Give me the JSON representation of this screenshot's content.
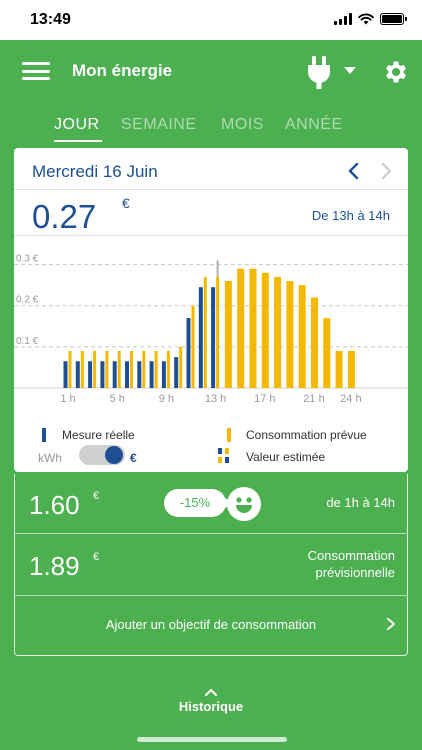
{
  "status": {
    "time": "13:49"
  },
  "header": {
    "title": "Mon énergie"
  },
  "tabs": [
    {
      "label": "JOUR",
      "active": true
    },
    {
      "label": "SEMAINE",
      "active": false
    },
    {
      "label": "MOIS",
      "active": false
    },
    {
      "label": "ANNÉE",
      "active": false
    }
  ],
  "card": {
    "date": "Mercredi 16 Juin",
    "value": "0.27",
    "unit": "€",
    "range": "De 13h à 14h"
  },
  "chart_data": {
    "type": "bar",
    "y_ticks": [
      "0.3 €",
      "0.2 €",
      "0.1 €"
    ],
    "ylim": [
      0,
      0.35
    ],
    "x_ticks": [
      "1 h",
      "5 h",
      "9 h",
      "13 h",
      "17 h",
      "21 h",
      "24 h"
    ],
    "hours": [
      1,
      2,
      3,
      4,
      5,
      6,
      7,
      8,
      9,
      10,
      11,
      12,
      13,
      14,
      15,
      16,
      17,
      18,
      19,
      20,
      21,
      22,
      23,
      24
    ],
    "series": [
      {
        "name": "Mesure réelle",
        "color": "#1e4f94",
        "values": [
          0.065,
          0.065,
          0.065,
          0.065,
          0.065,
          0.065,
          0.065,
          0.065,
          0.065,
          0.075,
          0.17,
          0.245,
          0.245,
          null,
          null,
          null,
          null,
          null,
          null,
          null,
          null,
          null,
          null,
          null
        ]
      },
      {
        "name": "Consommation prévue",
        "color": "#f5b800",
        "values": [
          0.09,
          0.09,
          0.09,
          0.09,
          0.09,
          0.09,
          0.09,
          0.09,
          0.09,
          0.1,
          0.2,
          0.27,
          0.27,
          0.26,
          0.29,
          0.29,
          0.28,
          0.27,
          0.26,
          0.25,
          0.22,
          0.17,
          0.09,
          0.09
        ]
      },
      {
        "name": "Valeur estimée",
        "color": "#b0b0b0",
        "values": [
          null,
          null,
          null,
          null,
          null,
          null,
          null,
          null,
          null,
          null,
          null,
          null,
          0.31,
          null,
          null,
          null,
          null,
          null,
          null,
          null,
          null,
          null,
          null,
          null
        ]
      }
    ]
  },
  "legend": {
    "real": "Mesure réelle",
    "forecast": "Consommation prévue",
    "estimated": "Valeur estimée"
  },
  "toggle": {
    "left": "kWh",
    "right": "€"
  },
  "kpi1": {
    "value": "1.60",
    "unit": "€",
    "badge": "-15%",
    "range": "de 1h à 14h"
  },
  "kpi2": {
    "value": "1.89",
    "unit": "€",
    "label_line1": "Consommation",
    "label_line2": "prévisionnelle"
  },
  "goal": {
    "label": "Ajouter un objectif de consommation"
  },
  "footer": {
    "history": "Historique"
  },
  "colors": {
    "green": "#4caf50",
    "blue": "#1e4f94",
    "yellow": "#f5b800"
  }
}
